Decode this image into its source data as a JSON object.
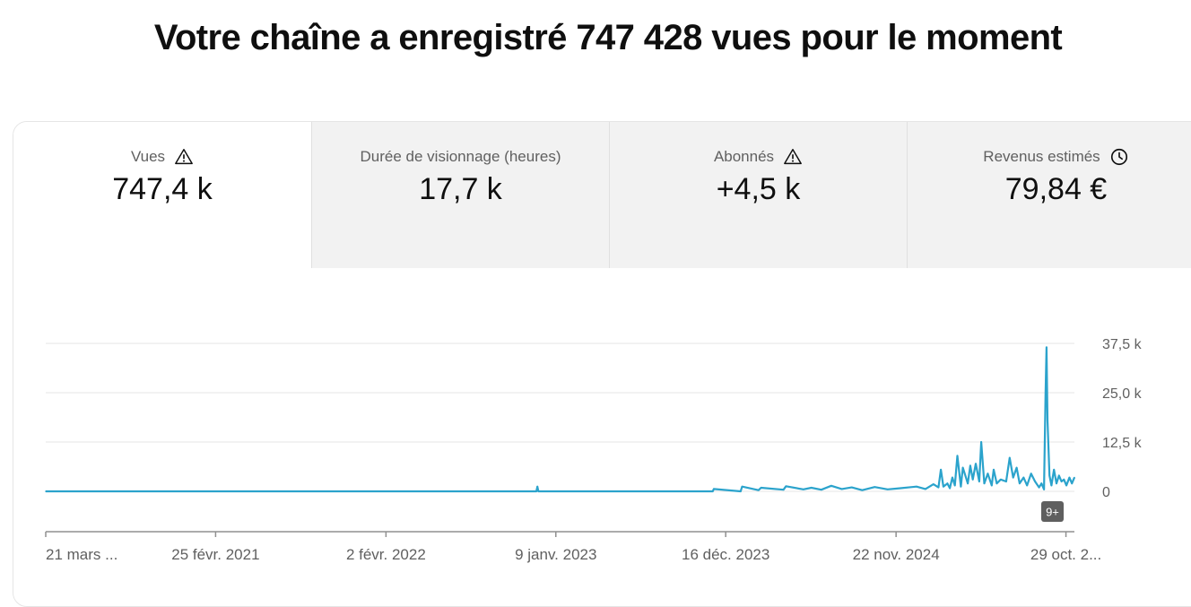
{
  "headline": "Votre chaîne a enregistré 747 428 vues pour le moment",
  "metrics": [
    {
      "label": "Vues",
      "value": "747,4 k",
      "icon": "warning-icon"
    },
    {
      "label": "Durée de visionnage (heures)",
      "value": "17,7 k",
      "icon": ""
    },
    {
      "label": "Abonnés",
      "value": "+4,5 k",
      "icon": "warning-icon"
    },
    {
      "label": "Revenus estimés",
      "value": "79,84 €",
      "icon": "clock-icon"
    }
  ],
  "colors": {
    "line": "#2ba3cc",
    "grid": "#e5e5e5",
    "axis": "#909090",
    "badge": "#5f5f5f"
  },
  "chart_data": {
    "type": "line",
    "ylim": [
      0,
      37500
    ],
    "yticks": [
      0,
      12500,
      25000,
      37500
    ],
    "ytick_labels": [
      "0",
      "12,5 k",
      "25,0 k",
      "37,5 k"
    ],
    "xlim": [
      "2020-03-21",
      "2025-11-15"
    ],
    "xticks": [
      "2020-03-21",
      "2021-02-25",
      "2022-02-02",
      "2023-01-09",
      "2023-12-16",
      "2024-11-22",
      "2025-10-29"
    ],
    "xtick_labels": [
      "21 mars ...",
      "25 févr. 2021",
      "2 févr. 2022",
      "9 janv. 2023",
      "16 déc. 2023",
      "22 nov. 2024",
      "29 oct. 2..."
    ],
    "series": [
      {
        "x": [
          "2020-03-21",
          "2022-12-01",
          "2022-12-03",
          "2022-12-05",
          "2023-11-20",
          "2023-11-22",
          "2024-01-15",
          "2024-01-18",
          "2024-02-20",
          "2024-02-25",
          "2024-04-10",
          "2024-04-15",
          "2024-05-20",
          "2024-06-05",
          "2024-06-25",
          "2024-07-15",
          "2024-08-05",
          "2024-08-25",
          "2024-09-15",
          "2024-10-10",
          "2024-11-05",
          "2024-12-01",
          "2025-01-02",
          "2025-01-20",
          "2025-02-05",
          "2025-02-15",
          "2025-02-20",
          "2025-02-25",
          "2025-03-05",
          "2025-03-10",
          "2025-03-15",
          "2025-03-20",
          "2025-03-25",
          "2025-04-01",
          "2025-04-05",
          "2025-04-10",
          "2025-04-15",
          "2025-04-20",
          "2025-04-25",
          "2025-05-01",
          "2025-05-08",
          "2025-05-12",
          "2025-05-18",
          "2025-05-25",
          "2025-06-02",
          "2025-06-06",
          "2025-06-12",
          "2025-06-20",
          "2025-07-01",
          "2025-07-08",
          "2025-07-15",
          "2025-07-22",
          "2025-07-28",
          "2025-08-05",
          "2025-08-12",
          "2025-08-20",
          "2025-08-28",
          "2025-09-05",
          "2025-09-10",
          "2025-09-15",
          "2025-09-18",
          "2025-09-20",
          "2025-09-22",
          "2025-09-26",
          "2025-09-30",
          "2025-10-05",
          "2025-10-10",
          "2025-10-15",
          "2025-10-20",
          "2025-10-25",
          "2025-10-30",
          "2025-11-05",
          "2025-11-10",
          "2025-11-15"
        ],
        "y": [
          0,
          0,
          1200,
          0,
          0,
          600,
          0,
          1200,
          300,
          900,
          400,
          1300,
          500,
          900,
          400,
          1400,
          600,
          1000,
          300,
          1100,
          500,
          800,
          1200,
          600,
          1800,
          1000,
          5500,
          1200,
          2000,
          800,
          3500,
          1500,
          9000,
          1200,
          6000,
          4000,
          2000,
          6500,
          3000,
          7000,
          2500,
          12500,
          2000,
          4500,
          1500,
          5500,
          2000,
          3000,
          2500,
          8500,
          3500,
          6000,
          2000,
          3500,
          1500,
          4500,
          2500,
          1000,
          2000,
          500,
          24500,
          36500,
          18000,
          4000,
          1500,
          5500,
          2000,
          4000,
          2500,
          3000,
          1500,
          3500,
          2000,
          3500
        ]
      }
    ]
  }
}
